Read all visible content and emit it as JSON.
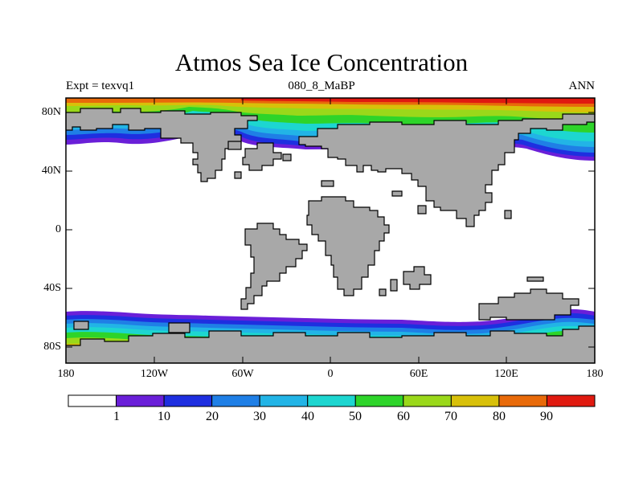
{
  "title": "Atmos Sea Ice Concentration",
  "subtitle_left": "Expt = texvq1",
  "subtitle_center": "080_8_MaBP",
  "subtitle_right": "ANN",
  "lat_ticks": [
    "80N",
    "40N",
    "0",
    "40S",
    "80S"
  ],
  "lon_ticks": [
    "180",
    "120W",
    "60W",
    "0",
    "60E",
    "120E",
    "180"
  ],
  "colorbar": {
    "labels": [
      "1",
      "10",
      "20",
      "30",
      "40",
      "50",
      "60",
      "70",
      "80",
      "90"
    ],
    "colors": [
      "#ffffff",
      "#6a1fd8",
      "#1e2fe0",
      "#1f7fe6",
      "#22b4e6",
      "#1dd6d0",
      "#2ed42a",
      "#9ad81a",
      "#d8c00a",
      "#e86a0a",
      "#e01a10"
    ]
  },
  "colors": {
    "land": "#a8a8a8",
    "ocean": "#ffffff"
  }
}
